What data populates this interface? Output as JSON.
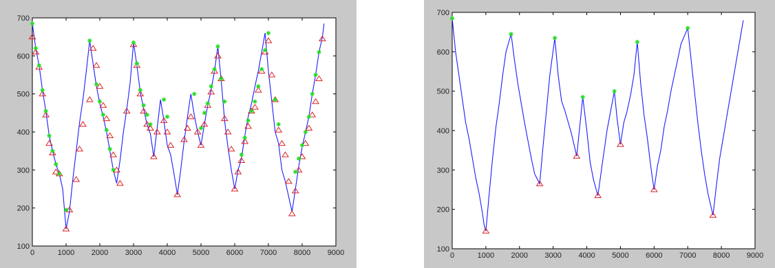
{
  "chart_data": [
    {
      "type": "line",
      "title": "",
      "xlabel": "",
      "ylabel": "",
      "xlim": [
        0,
        9000
      ],
      "ylim": [
        100,
        700
      ],
      "xticks": [
        0,
        1000,
        2000,
        3000,
        4000,
        5000,
        6000,
        7000,
        8000,
        9000
      ],
      "yticks": [
        100,
        200,
        300,
        400,
        500,
        600,
        700
      ],
      "grid": false,
      "series": [
        {
          "color": "#1c1cff",
          "x": [
            0,
            100,
            200,
            300,
            400,
            500,
            600,
            700,
            800,
            900,
            1000,
            1100,
            1200,
            1300,
            1400,
            1500,
            1600,
            1700,
            1800,
            1900,
            2000,
            2100,
            2200,
            2300,
            2400,
            2500,
            2600,
            2700,
            2800,
            2900,
            3000,
            3100,
            3200,
            3300,
            3400,
            3500,
            3600,
            3700,
            3800,
            3900,
            4000,
            4100,
            4200,
            4300,
            4400,
            4500,
            4600,
            4700,
            4800,
            4900,
            5000,
            5100,
            5200,
            5300,
            5400,
            5500,
            5600,
            5700,
            5800,
            5900,
            6000,
            6100,
            6200,
            6300,
            6400,
            6500,
            6600,
            6700,
            6800,
            6900,
            7000,
            7100,
            7200,
            7300,
            7400,
            7500,
            7600,
            7700,
            7800,
            7900,
            8000,
            8100,
            8200,
            8300,
            8400,
            8500,
            8600,
            8650
          ],
          "y": [
            685,
            620,
            575,
            510,
            455,
            390,
            350,
            315,
            290,
            250,
            145,
            190,
            275,
            350,
            425,
            485,
            560,
            640,
            580,
            520,
            475,
            440,
            400,
            350,
            300,
            265,
            325,
            400,
            460,
            530,
            635,
            575,
            505,
            460,
            420,
            395,
            335,
            410,
            485,
            430,
            365,
            340,
            290,
            235,
            300,
            375,
            440,
            500,
            445,
            400,
            365,
            420,
            470,
            510,
            560,
            625,
            535,
            430,
            360,
            300,
            250,
            300,
            330,
            390,
            440,
            475,
            520,
            560,
            610,
            660,
            560,
            480,
            400,
            370,
            300,
            270,
            230,
            190,
            250,
            310,
            360,
            400,
            440,
            500,
            550,
            610,
            650,
            685
          ]
        }
      ],
      "markers": {
        "peaks": {
          "symbol": "star",
          "color": "#22dd22",
          "x": [
            0,
            100,
            200,
            300,
            400,
            500,
            600,
            700,
            800,
            1000,
            1700,
            1900,
            2000,
            2100,
            2200,
            2300,
            2400,
            3000,
            3100,
            3200,
            3300,
            3400,
            3500,
            3900,
            4000,
            4800,
            5000,
            5100,
            5200,
            5300,
            5400,
            5500,
            5600,
            5700,
            6200,
            6300,
            6400,
            6500,
            6600,
            6700,
            6800,
            6900,
            7000,
            7200,
            7300,
            7800,
            7900,
            8000,
            8100,
            8200,
            8300,
            8400,
            8500
          ],
          "y": [
            685,
            620,
            575,
            510,
            455,
            390,
            350,
            315,
            290,
            195,
            640,
            525,
            480,
            445,
            405,
            355,
            300,
            635,
            580,
            510,
            470,
            445,
            420,
            485,
            440,
            500,
            410,
            450,
            475,
            520,
            565,
            625,
            540,
            480,
            340,
            385,
            430,
            455,
            480,
            520,
            565,
            615,
            660,
            485,
            420,
            295,
            330,
            365,
            400,
            440,
            500,
            550,
            610
          ]
        },
        "valleys": {
          "symbol": "triangle",
          "color": "#dd2222",
          "x": [
            0,
            100,
            200,
            300,
            400,
            500,
            600,
            700,
            800,
            1000,
            1100,
            1300,
            1400,
            1500,
            1700,
            1800,
            1900,
            2000,
            2100,
            2200,
            2300,
            2400,
            2500,
            2600,
            2800,
            3000,
            3100,
            3200,
            3300,
            3400,
            3500,
            3600,
            3700,
            3900,
            4000,
            4100,
            4300,
            4500,
            4600,
            4700,
            4900,
            5000,
            5100,
            5200,
            5300,
            5400,
            5500,
            5600,
            5700,
            5800,
            5900,
            6000,
            6100,
            6200,
            6300,
            6400,
            6500,
            6600,
            6700,
            6800,
            6900,
            7000,
            7100,
            7200,
            7300,
            7400,
            7500,
            7600,
            7700,
            7800,
            7900,
            8000,
            8100,
            8200,
            8300,
            8400,
            8500,
            8600
          ],
          "y": [
            650,
            610,
            570,
            500,
            445,
            370,
            345,
            295,
            290,
            145,
            195,
            275,
            355,
            420,
            485,
            620,
            575,
            520,
            470,
            435,
            390,
            340,
            300,
            265,
            455,
            630,
            575,
            500,
            455,
            420,
            410,
            335,
            400,
            430,
            400,
            365,
            235,
            380,
            410,
            440,
            400,
            365,
            420,
            470,
            505,
            560,
            600,
            540,
            435,
            400,
            355,
            250,
            295,
            325,
            375,
            415,
            455,
            465,
            510,
            560,
            610,
            640,
            550,
            485,
            405,
            370,
            340,
            270,
            185,
            245,
            300,
            335,
            370,
            410,
            445,
            480,
            540,
            645
          ]
        }
      }
    },
    {
      "type": "line",
      "title": "",
      "xlabel": "",
      "ylabel": "",
      "xlim": [
        0,
        9000
      ],
      "ylim": [
        100,
        700
      ],
      "xticks": [
        0,
        1000,
        2000,
        3000,
        4000,
        5000,
        6000,
        7000,
        8000,
        9000
      ],
      "yticks": [
        100,
        200,
        300,
        400,
        500,
        600,
        700
      ],
      "grid": false,
      "series": [
        {
          "color": "#1c1cff",
          "x": [
            0,
            100,
            200,
            300,
            400,
            500,
            600,
            700,
            800,
            900,
            950,
            1000,
            1100,
            1200,
            1300,
            1400,
            1500,
            1600,
            1750,
            1850,
            1950,
            2050,
            2150,
            2250,
            2350,
            2450,
            2600,
            2700,
            2800,
            2900,
            3050,
            3150,
            3250,
            3350,
            3450,
            3550,
            3700,
            3880,
            4000,
            4100,
            4200,
            4330,
            4450,
            4600,
            4820,
            4900,
            5000,
            5100,
            5200,
            5300,
            5400,
            5500,
            5600,
            5700,
            5800,
            5900,
            6000,
            6100,
            6200,
            6300,
            6400,
            6500,
            6600,
            6700,
            6800,
            7000,
            7100,
            7200,
            7300,
            7400,
            7500,
            7600,
            7750,
            7850,
            7950,
            8050,
            8150,
            8250,
            8350,
            8450,
            8550,
            8650
          ],
          "y": [
            685,
            600,
            540,
            480,
            420,
            380,
            330,
            280,
            240,
            190,
            160,
            145,
            240,
            330,
            410,
            470,
            540,
            600,
            645,
            580,
            520,
            470,
            420,
            375,
            330,
            290,
            265,
            360,
            450,
            540,
            635,
            540,
            475,
            450,
            420,
            390,
            335,
            485,
            400,
            320,
            275,
            235,
            310,
            400,
            500,
            430,
            365,
            420,
            450,
            490,
            540,
            625,
            520,
            440,
            380,
            310,
            250,
            310,
            350,
            410,
            450,
            500,
            540,
            580,
            620,
            660,
            580,
            500,
            420,
            350,
            290,
            240,
            185,
            260,
            330,
            380,
            430,
            480,
            530,
            580,
            630,
            680
          ]
        }
      ],
      "markers": {
        "peaks": {
          "symbol": "star",
          "color": "#22dd22",
          "x": [
            0,
            1750,
            3050,
            3880,
            4820,
            5500,
            7000
          ],
          "y": [
            685,
            645,
            635,
            485,
            500,
            625,
            660
          ]
        },
        "valleys": {
          "symbol": "triangle",
          "color": "#dd2222",
          "x": [
            1000,
            2600,
            3700,
            4330,
            5000,
            6000,
            7750
          ],
          "y": [
            145,
            265,
            335,
            235,
            365,
            250,
            185
          ]
        }
      }
    }
  ]
}
